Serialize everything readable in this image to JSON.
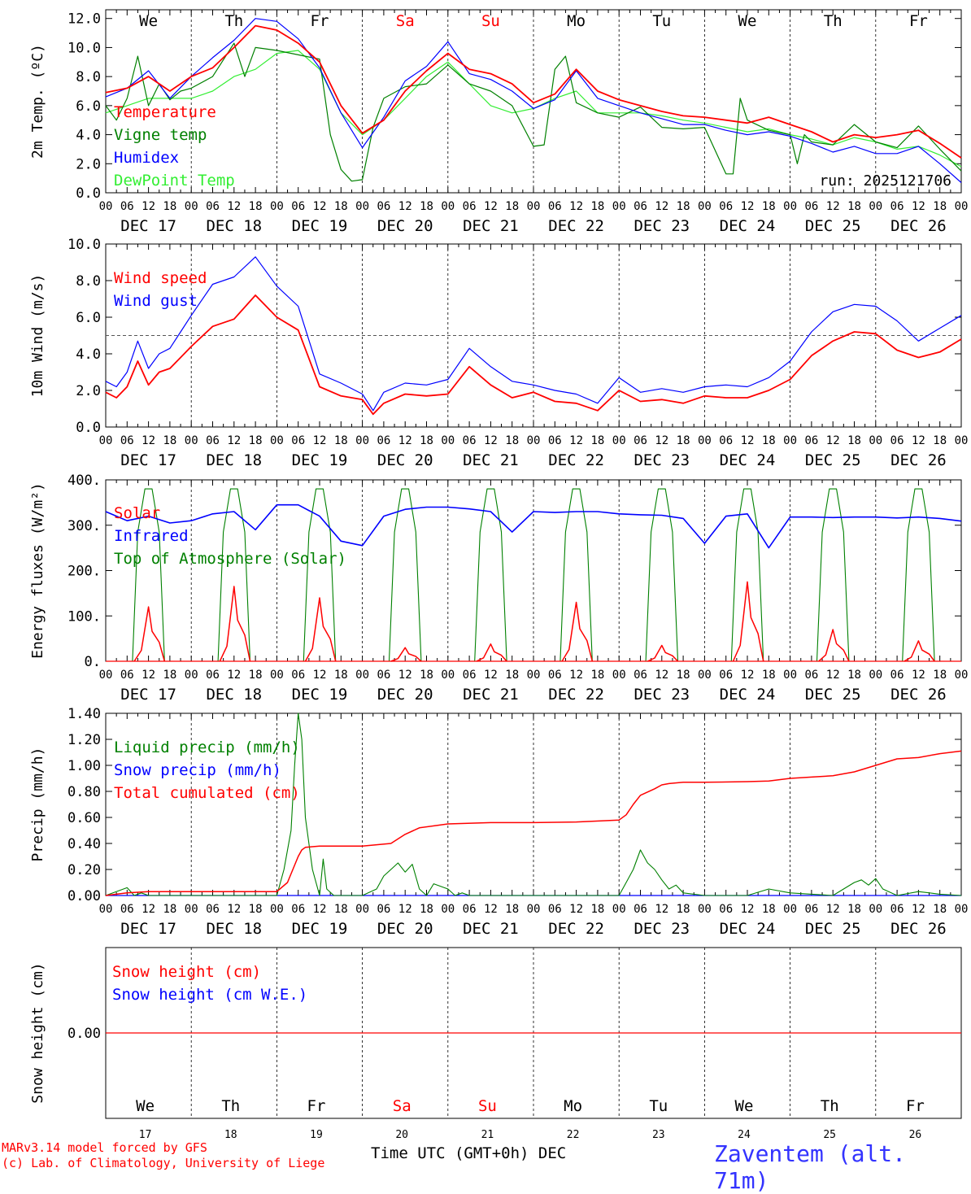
{
  "run_label": "run: 2025121706",
  "day_names": [
    "We",
    "Th",
    "Fr",
    "Sa",
    "Su",
    "Mo",
    "Tu",
    "We",
    "Th",
    "Fr"
  ],
  "day_name_colors": [
    "#000000",
    "#000000",
    "#000000",
    "#ff0000",
    "#ff0000",
    "#000000",
    "#000000",
    "#000000",
    "#000000",
    "#000000"
  ],
  "date_labels": [
    "DEC 17",
    "DEC 18",
    "DEC 19",
    "DEC 20",
    "DEC 21",
    "DEC 22",
    "DEC 23",
    "DEC 24",
    "DEC 25",
    "DEC 26"
  ],
  "day_numbers": [
    "17",
    "18",
    "19",
    "20",
    "21",
    "22",
    "23",
    "24",
    "25",
    "26"
  ],
  "hour_ticks": [
    "00",
    "06",
    "12",
    "18"
  ],
  "final_hour_tick": "00",
  "footer": {
    "credit_line1": "MARv3.14 model forced by GFS",
    "credit_line2": "(c) Lab. of Climatology, University of Liege",
    "time_axis_label": "Time UTC (GMT+0h) DEC",
    "station": "Zaventem (alt. 71m)"
  },
  "colors": {
    "red": "#ff0000",
    "green": "#008000",
    "blue": "#0000ff",
    "lime": "#33ee33",
    "dashed_ref": "#555555"
  },
  "chart_data": [
    {
      "id": "temp",
      "type": "line",
      "ylabel": "2m Temp. (ºC)",
      "ylim": [
        0,
        12.6
      ],
      "yticks": [
        "0.0",
        "2.0",
        "4.0",
        "6.0",
        "8.0",
        "10.0",
        "12.0"
      ],
      "ytick_values": [
        0,
        2,
        4,
        6,
        8,
        10,
        12
      ],
      "x_unit": "hours since Dec 17 00 UTC",
      "xlim": [
        0,
        240
      ],
      "series": [
        {
          "name": "Temperature",
          "color": "red",
          "x": [
            0,
            6,
            12,
            18,
            24,
            30,
            36,
            42,
            48,
            54,
            60,
            66,
            72,
            78,
            84,
            90,
            96,
            102,
            108,
            114,
            120,
            126,
            132,
            138,
            144,
            150,
            156,
            162,
            168,
            174,
            180,
            186,
            192,
            198,
            204,
            210,
            216,
            222,
            228,
            234,
            240
          ],
          "values": [
            6.9,
            7.2,
            8.0,
            7.0,
            8.0,
            8.6,
            10.0,
            11.5,
            11.2,
            10.3,
            9.0,
            6.0,
            4.1,
            5.0,
            7.0,
            8.4,
            9.6,
            8.5,
            8.2,
            7.5,
            6.2,
            6.8,
            8.5,
            7.0,
            6.4,
            6.0,
            5.6,
            5.3,
            5.2,
            5.0,
            4.8,
            5.2,
            4.7,
            4.2,
            3.5,
            4.0,
            3.8,
            4.0,
            4.3,
            3.4,
            2.4
          ]
        },
        {
          "name": "Vigne temp",
          "color": "green",
          "x": [
            0,
            3,
            6,
            9,
            12,
            15,
            18,
            21,
            24,
            30,
            36,
            39,
            42,
            48,
            54,
            60,
            63,
            66,
            69,
            72,
            75,
            78,
            84,
            90,
            96,
            102,
            108,
            114,
            120,
            123,
            126,
            129,
            132,
            138,
            144,
            150,
            156,
            162,
            168,
            174,
            176,
            178,
            180,
            186,
            192,
            194,
            196,
            198,
            204,
            210,
            216,
            222,
            228,
            234,
            240
          ],
          "values": [
            6.0,
            5.0,
            6.5,
            9.4,
            6.0,
            7.5,
            6.4,
            7.0,
            7.2,
            8.0,
            10.3,
            8.0,
            10.0,
            9.8,
            9.5,
            9.2,
            4.0,
            1.6,
            0.8,
            0.9,
            4.5,
            6.5,
            7.3,
            7.5,
            8.8,
            7.5,
            7.0,
            6.0,
            3.2,
            3.3,
            8.5,
            9.4,
            6.2,
            5.5,
            5.2,
            5.9,
            4.5,
            4.4,
            4.5,
            1.3,
            1.3,
            6.5,
            5.0,
            4.3,
            4.0,
            2.0,
            4.0,
            3.5,
            3.3,
            4.7,
            3.5,
            3.1,
            4.6,
            3.0,
            1.5
          ]
        },
        {
          "name": "Humidex",
          "color": "blue",
          "x": [
            0,
            6,
            12,
            18,
            24,
            30,
            36,
            42,
            48,
            54,
            60,
            66,
            72,
            78,
            84,
            90,
            96,
            102,
            108,
            114,
            120,
            126,
            132,
            138,
            144,
            150,
            156,
            162,
            168,
            174,
            180,
            186,
            192,
            198,
            204,
            210,
            216,
            222,
            228,
            234,
            240
          ],
          "values": [
            6.6,
            7.2,
            8.4,
            6.5,
            8.0,
            9.3,
            10.5,
            12.0,
            11.8,
            10.6,
            8.6,
            5.5,
            3.1,
            5.2,
            7.7,
            8.7,
            10.4,
            8.2,
            7.8,
            7.0,
            5.8,
            6.4,
            8.4,
            6.5,
            6.0,
            5.5,
            5.1,
            4.7,
            4.7,
            4.3,
            4.0,
            4.2,
            3.9,
            3.4,
            2.8,
            3.2,
            2.7,
            2.7,
            3.2,
            2.0,
            0.7
          ]
        },
        {
          "name": "DewPoint Temp",
          "color": "lime",
          "x": [
            0,
            6,
            12,
            18,
            24,
            30,
            36,
            42,
            48,
            54,
            60,
            66,
            72,
            78,
            84,
            90,
            96,
            102,
            108,
            114,
            120,
            126,
            132,
            138,
            144,
            150,
            156,
            162,
            168,
            174,
            180,
            186,
            192,
            198,
            204,
            210,
            216,
            222,
            228,
            234,
            240
          ],
          "values": [
            5.5,
            6.0,
            6.5,
            6.5,
            6.5,
            7.0,
            8.0,
            8.5,
            9.6,
            9.8,
            8.5,
            5.5,
            4.0,
            5.0,
            6.5,
            8.0,
            9.0,
            7.5,
            6.0,
            5.5,
            5.8,
            6.5,
            7.0,
            5.5,
            5.5,
            5.5,
            5.3,
            5.0,
            4.8,
            4.5,
            4.2,
            4.4,
            4.0,
            3.7,
            3.3,
            3.8,
            3.5,
            3.0,
            3.2,
            2.6,
            1.8
          ]
        }
      ]
    },
    {
      "id": "wind",
      "type": "line",
      "ylabel": "10m Wind (m/s)",
      "ylim": [
        0,
        10
      ],
      "yticks": [
        "0.0",
        "2.0",
        "4.0",
        "6.0",
        "8.0",
        "10.0"
      ],
      "ytick_values": [
        0,
        2,
        4,
        6,
        8,
        10
      ],
      "reference_line": 5.0,
      "xlim": [
        0,
        240
      ],
      "series": [
        {
          "name": "Wind speed",
          "color": "red",
          "x": [
            0,
            3,
            6,
            9,
            12,
            15,
            18,
            21,
            24,
            30,
            36,
            42,
            48,
            54,
            60,
            66,
            72,
            75,
            78,
            84,
            90,
            96,
            102,
            108,
            114,
            120,
            126,
            132,
            138,
            144,
            150,
            156,
            162,
            168,
            174,
            180,
            186,
            192,
            198,
            204,
            210,
            216,
            222,
            228,
            234,
            240
          ],
          "values": [
            1.9,
            1.6,
            2.2,
            3.6,
            2.3,
            3.0,
            3.2,
            3.8,
            4.4,
            5.5,
            5.9,
            7.2,
            6.0,
            5.3,
            2.2,
            1.7,
            1.5,
            0.7,
            1.3,
            1.8,
            1.7,
            1.8,
            3.3,
            2.3,
            1.6,
            1.9,
            1.4,
            1.3,
            0.9,
            2.0,
            1.4,
            1.5,
            1.3,
            1.7,
            1.6,
            1.6,
            2.0,
            2.6,
            3.9,
            4.7,
            5.2,
            5.1,
            4.2,
            3.8,
            4.1,
            4.8
          ]
        },
        {
          "name": "Wind gust",
          "color": "blue",
          "x": [
            0,
            3,
            6,
            9,
            12,
            15,
            18,
            21,
            24,
            30,
            36,
            42,
            48,
            54,
            60,
            66,
            72,
            75,
            78,
            84,
            90,
            96,
            102,
            108,
            114,
            120,
            126,
            132,
            138,
            144,
            150,
            156,
            162,
            168,
            174,
            180,
            186,
            192,
            198,
            204,
            210,
            216,
            222,
            228,
            234,
            240
          ],
          "values": [
            2.5,
            2.2,
            3.0,
            4.7,
            3.2,
            4.0,
            4.3,
            5.2,
            6.1,
            7.8,
            8.2,
            9.3,
            7.7,
            6.6,
            2.9,
            2.4,
            1.8,
            0.9,
            1.9,
            2.4,
            2.3,
            2.6,
            4.3,
            3.3,
            2.5,
            2.3,
            2.0,
            1.8,
            1.3,
            2.7,
            1.9,
            2.1,
            1.9,
            2.2,
            2.3,
            2.2,
            2.7,
            3.6,
            5.2,
            6.3,
            6.7,
            6.6,
            5.8,
            4.7,
            5.4,
            6.1
          ]
        }
      ]
    },
    {
      "id": "energy",
      "type": "line",
      "ylabel": "Energy fluxes (W/m²)",
      "ylim": [
        0,
        400
      ],
      "yticks": [
        "0.",
        "100.",
        "200.",
        "300.",
        "400."
      ],
      "ytick_values": [
        0,
        100,
        200,
        300,
        400
      ],
      "xlim": [
        0,
        240
      ],
      "series": [
        {
          "name": "Solar",
          "color": "red",
          "daily_peaks": [
            120,
            165,
            140,
            30,
            38,
            130,
            35,
            175,
            70,
            45
          ],
          "peak_hours": 12
        },
        {
          "name": "Infrared",
          "color": "blue",
          "x": [
            0,
            6,
            12,
            18,
            24,
            30,
            36,
            42,
            48,
            54,
            60,
            66,
            72,
            78,
            84,
            90,
            96,
            102,
            108,
            114,
            120,
            126,
            132,
            138,
            144,
            150,
            156,
            162,
            168,
            174,
            180,
            186,
            192,
            198,
            204,
            210,
            216,
            222,
            228,
            234,
            240
          ],
          "values": [
            330,
            310,
            320,
            305,
            310,
            325,
            330,
            290,
            345,
            345,
            320,
            265,
            255,
            320,
            335,
            340,
            340,
            336,
            330,
            285,
            330,
            328,
            330,
            330,
            325,
            323,
            322,
            315,
            260,
            320,
            325,
            250,
            318,
            318,
            317,
            318,
            318,
            316,
            318,
            315,
            309
          ]
        },
        {
          "name": "Top of Atmosphere (Solar)",
          "color": "green",
          "daily_peak": 380,
          "day_hours": [
            7.5,
            16.5
          ]
        }
      ]
    },
    {
      "id": "precip",
      "type": "line",
      "ylabel": "Precip (mm/h)",
      "ylim": [
        0,
        1.4
      ],
      "yticks": [
        "0.00",
        "0.20",
        "0.40",
        "0.60",
        "0.80",
        "1.00",
        "1.20",
        "1.40"
      ],
      "ytick_values": [
        0,
        0.2,
        0.4,
        0.6,
        0.8,
        1.0,
        1.2,
        1.4
      ],
      "xlim": [
        0,
        240
      ],
      "series": [
        {
          "name": "Liquid precip (mm/h)",
          "color": "green",
          "x": [
            0,
            6,
            8,
            10,
            12,
            24,
            48,
            50,
            52,
            53,
            54,
            55,
            56,
            58,
            60,
            61,
            62,
            64,
            66,
            72,
            76,
            78,
            80,
            82,
            84,
            86,
            88,
            90,
            92,
            96,
            98,
            100,
            102,
            108,
            144,
            146,
            148,
            150,
            152,
            154,
            156,
            158,
            160,
            162,
            168,
            180,
            186,
            192,
            204,
            210,
            212,
            214,
            216,
            218,
            222,
            228,
            234,
            240
          ],
          "values": [
            0.0,
            0.06,
            0.0,
            0.02,
            0.0,
            0.0,
            0.0,
            0.2,
            0.5,
            1.0,
            1.4,
            1.2,
            0.6,
            0.2,
            0.0,
            0.28,
            0.05,
            0.0,
            0.0,
            0.0,
            0.05,
            0.15,
            0.2,
            0.25,
            0.18,
            0.24,
            0.05,
            0.0,
            0.09,
            0.05,
            0.0,
            0.02,
            0.0,
            0.0,
            0.0,
            0.1,
            0.2,
            0.35,
            0.25,
            0.2,
            0.12,
            0.05,
            0.08,
            0.02,
            0.0,
            0.0,
            0.05,
            0.02,
            0.0,
            0.1,
            0.12,
            0.08,
            0.13,
            0.05,
            0.0,
            0.03,
            0.01,
            0.0
          ]
        },
        {
          "name": "Snow precip (mm/h)",
          "color": "blue",
          "x": [
            0,
            240
          ],
          "values": [
            0,
            0
          ]
        },
        {
          "name": "Total cumulated (cm)",
          "color": "red",
          "x": [
            0,
            6,
            12,
            24,
            36,
            48,
            51,
            54,
            55,
            56,
            60,
            66,
            72,
            80,
            84,
            88,
            96,
            108,
            120,
            132,
            144,
            146,
            148,
            150,
            154,
            156,
            158,
            162,
            168,
            180,
            186,
            192,
            198,
            204,
            210,
            216,
            222,
            228,
            234,
            240
          ],
          "values": [
            0.0,
            0.02,
            0.03,
            0.03,
            0.03,
            0.03,
            0.1,
            0.3,
            0.35,
            0.37,
            0.38,
            0.38,
            0.38,
            0.4,
            0.47,
            0.52,
            0.55,
            0.56,
            0.56,
            0.565,
            0.58,
            0.62,
            0.7,
            0.77,
            0.82,
            0.85,
            0.86,
            0.87,
            0.87,
            0.875,
            0.88,
            0.9,
            0.91,
            0.92,
            0.95,
            1.0,
            1.05,
            1.06,
            1.09,
            1.11
          ]
        }
      ]
    },
    {
      "id": "snow",
      "type": "line",
      "ylabel": "Snow height (cm)",
      "ytick_label": "0.00",
      "ytick_values": [
        0
      ],
      "xlim": [
        0,
        240
      ],
      "series": [
        {
          "name": "Snow height (cm)",
          "color": "red",
          "x": [
            0,
            240
          ],
          "values": [
            0,
            0
          ]
        },
        {
          "name": "Snow height (cm W.E.)",
          "color": "blue",
          "x": [
            0,
            240
          ],
          "values": [
            0,
            0
          ]
        }
      ]
    }
  ]
}
